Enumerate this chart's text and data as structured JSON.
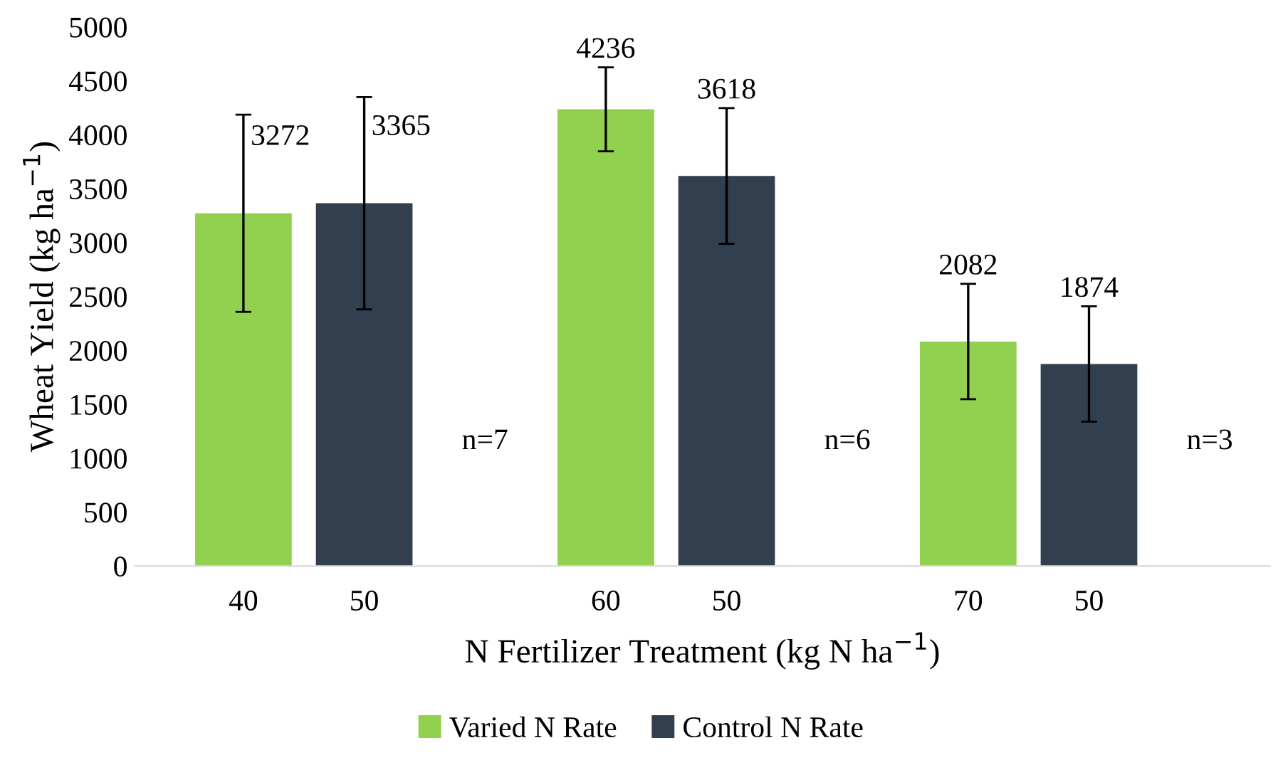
{
  "chart_data": {
    "type": "bar",
    "xlabel": "N Fertilizer Treatment (kg N ha$^{−1}$)",
    "ylabel": "Wheat Yield (kg ha$^{−1}$)",
    "categories": [
      "40",
      "50",
      null,
      "60",
      "50",
      null,
      "70",
      "50",
      null
    ],
    "series": [
      {
        "name": "Varied N Rate",
        "color": "#92d050",
        "values": [
          3272,
          null,
          null,
          4236,
          null,
          null,
          2082,
          null,
          null
        ],
        "errors": [
          915,
          null,
          null,
          390,
          null,
          null,
          535,
          null,
          null
        ]
      },
      {
        "name": "Control N Rate",
        "color": "#323f4f",
        "values": [
          null,
          3365,
          null,
          null,
          3618,
          null,
          null,
          1874,
          null
        ],
        "errors": [
          null,
          985,
          null,
          null,
          630,
          null,
          null,
          535,
          null
        ]
      }
    ],
    "annotations": [
      "n=7",
      "n=6",
      "n=3"
    ],
    "ylim": [
      0,
      5000
    ],
    "yticks": [
      0,
      500,
      1000,
      1500,
      2000,
      2500,
      3000,
      3500,
      4000,
      4500,
      5000
    ],
    "data_labels": true,
    "grid": false,
    "legend": "bottom"
  }
}
